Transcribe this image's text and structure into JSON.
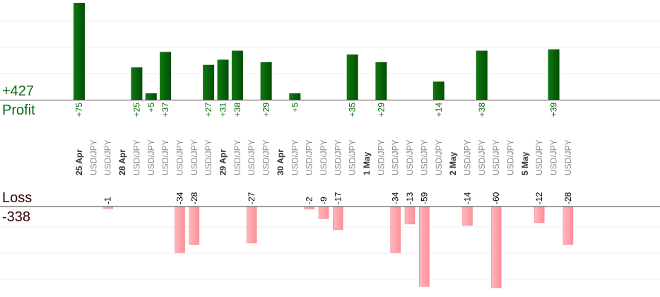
{
  "summary": {
    "profit_total": "+427",
    "profit_label": "Profit",
    "loss_label": "Loss",
    "loss_total": "-338"
  },
  "chart_data": {
    "type": "bar",
    "profit_color": "#0a6a0a",
    "loss_color": "#ff9fa6",
    "profit_ylim": [
      0,
      75
    ],
    "loss_ylim": [
      -60,
      0
    ],
    "grid": true,
    "columns": [
      {
        "label": "25 Apr",
        "is_date": true,
        "value": 75
      },
      {
        "label": "USD/JPY",
        "is_date": false,
        "value": null
      },
      {
        "label": "USD/JPY",
        "is_date": false,
        "value": -1
      },
      {
        "label": "28 Apr",
        "is_date": true,
        "value": null
      },
      {
        "label": "USD/JPY",
        "is_date": false,
        "value": 25
      },
      {
        "label": "USD/JPY",
        "is_date": false,
        "value": 5
      },
      {
        "label": "USD/JPY",
        "is_date": false,
        "value": 37
      },
      {
        "label": "USD/JPY",
        "is_date": false,
        "value": -34
      },
      {
        "label": "USD/JPY",
        "is_date": false,
        "value": -28
      },
      {
        "label": "USD/JPY",
        "is_date": false,
        "value": 27
      },
      {
        "label": "29 Apr",
        "is_date": true,
        "value": 31
      },
      {
        "label": "USD/JPY",
        "is_date": false,
        "value": 38
      },
      {
        "label": "USD/JPY",
        "is_date": false,
        "value": -27
      },
      {
        "label": "USD/JPY",
        "is_date": false,
        "value": 29
      },
      {
        "label": "30 Apr",
        "is_date": true,
        "value": null
      },
      {
        "label": "USD/JPY",
        "is_date": false,
        "value": 5
      },
      {
        "label": "USD/JPY",
        "is_date": false,
        "value": -2
      },
      {
        "label": "USD/JPY",
        "is_date": false,
        "value": -9
      },
      {
        "label": "USD/JPY",
        "is_date": false,
        "value": -17
      },
      {
        "label": "USD/JPY",
        "is_date": false,
        "value": 35
      },
      {
        "label": "1 May",
        "is_date": true,
        "value": null
      },
      {
        "label": "USD/JPY",
        "is_date": false,
        "value": 29
      },
      {
        "label": "USD/JPY",
        "is_date": false,
        "value": -34
      },
      {
        "label": "USD/JPY",
        "is_date": false,
        "value": -13
      },
      {
        "label": "USD/JPY",
        "is_date": false,
        "value": -59
      },
      {
        "label": "USD/JPY",
        "is_date": false,
        "value": 14
      },
      {
        "label": "2 May",
        "is_date": true,
        "value": null
      },
      {
        "label": "USD/JPY",
        "is_date": false,
        "value": -14
      },
      {
        "label": "USD/JPY",
        "is_date": false,
        "value": 38
      },
      {
        "label": "USD/JPY",
        "is_date": false,
        "value": -60
      },
      {
        "label": "USD/JPY",
        "is_date": false,
        "value": null
      },
      {
        "label": "5 May",
        "is_date": true,
        "value": null
      },
      {
        "label": "USD/JPY",
        "is_date": false,
        "value": -12
      },
      {
        "label": "USD/JPY",
        "is_date": false,
        "value": 39
      },
      {
        "label": "USD/JPY",
        "is_date": false,
        "value": -28
      }
    ]
  }
}
